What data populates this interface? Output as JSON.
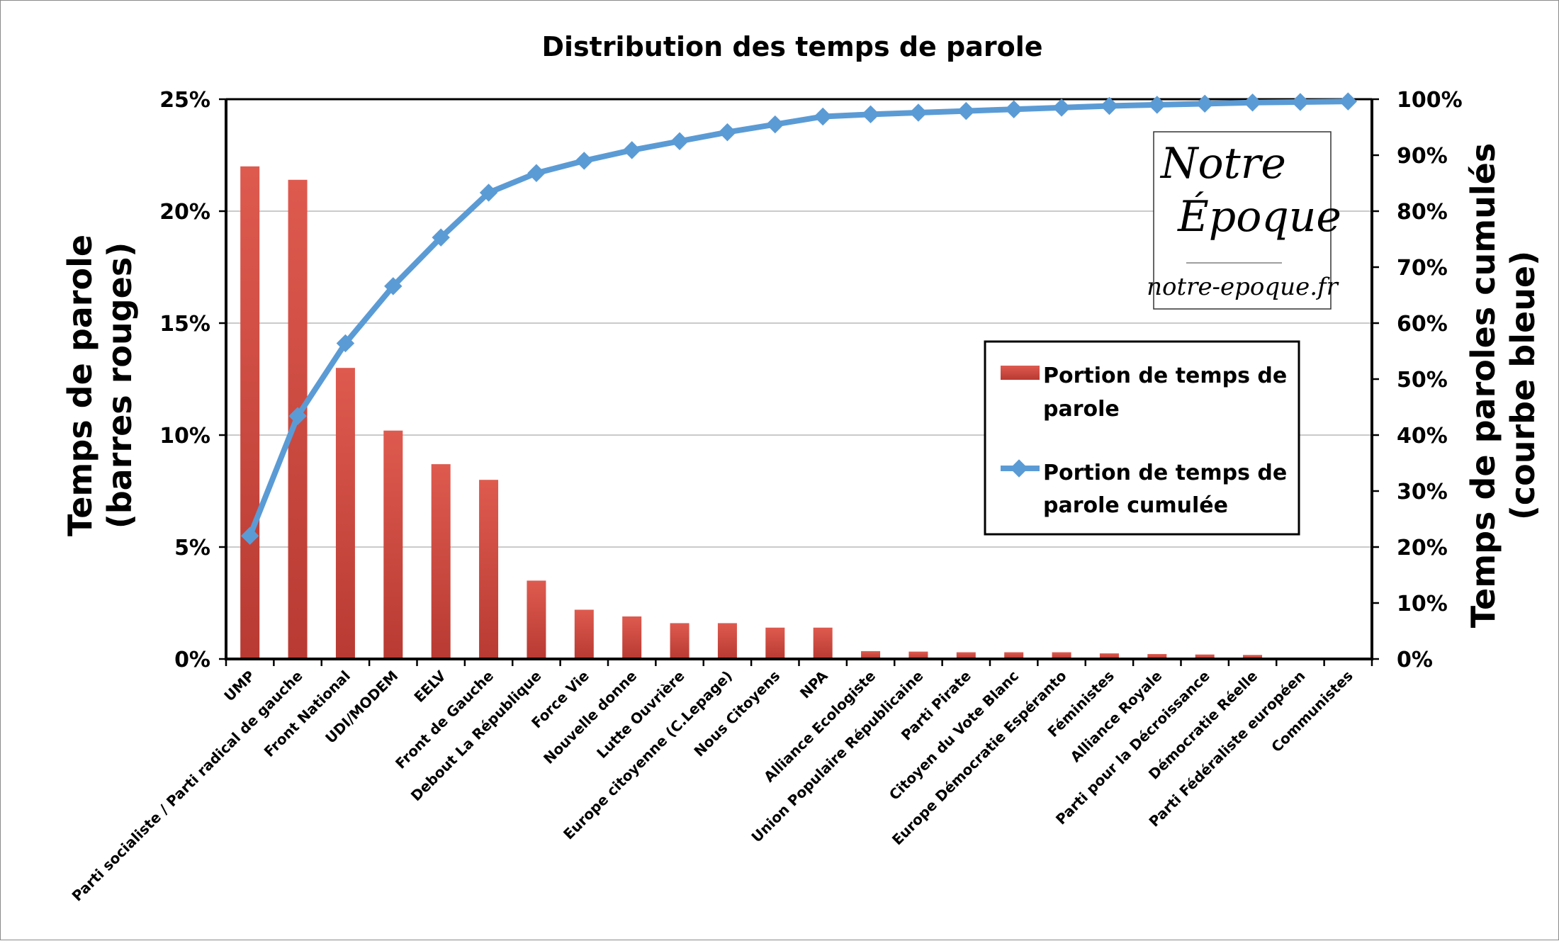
{
  "chart_data": {
    "type": "bar+line",
    "title": "Distribution des temps de parole",
    "y_left_label": [
      "Temps de parole",
      "(barres rouges)"
    ],
    "y_right_label": [
      "Temps de paroles cumulés",
      "(courbe bleue)"
    ],
    "y_left_range": [
      0,
      25
    ],
    "y_left_ticks": [
      "0%",
      "5%",
      "10%",
      "15%",
      "20%",
      "25%"
    ],
    "y_right_range": [
      0,
      100
    ],
    "y_right_ticks": [
      "0%",
      "10%",
      "20%",
      "30%",
      "40%",
      "50%",
      "60%",
      "70%",
      "80%",
      "90%",
      "100%"
    ],
    "grid": true,
    "legend_position": "right",
    "categories": [
      "UMP",
      "Parti socialiste / Parti radical de gauche",
      "Front National",
      "UDI/MODEM",
      "EELV",
      "Front de Gauche",
      "Debout La République",
      "Force Vie",
      "Nouvelle donne",
      "Lutte Ouvrière",
      "Europe citoyenne (C.Lepage)",
      "Nous Citoyens",
      "NPA",
      "Alliance Ecologiste",
      "Union Populaire Républicaine",
      "Parti Pirate",
      "Citoyen du Vote Blanc",
      "Europe Démocratie Espéranto",
      "Féministes",
      "Alliance Royale",
      "Parti pour la Décroissance",
      "Démocratie Réelle",
      "Parti Fédéraliste européen",
      "Communistes"
    ],
    "series": [
      {
        "name": "Portion de temps de parole",
        "axis": "left",
        "kind": "bar",
        "color": "#d9534a",
        "values": [
          22.0,
          21.4,
          13.0,
          10.2,
          8.7,
          8.0,
          3.5,
          2.2,
          1.9,
          1.6,
          1.6,
          1.4,
          1.4,
          0.35,
          0.33,
          0.3,
          0.3,
          0.3,
          0.25,
          0.22,
          0.2,
          0.18,
          0.05,
          0.03
        ]
      },
      {
        "name": "Portion de temps de parole cumulée",
        "axis": "right",
        "kind": "line",
        "color": "#5b9bd5",
        "values": [
          22.0,
          43.4,
          56.4,
          66.6,
          75.3,
          83.3,
          86.8,
          89.0,
          90.9,
          92.5,
          94.1,
          95.5,
          96.9,
          97.3,
          97.6,
          97.9,
          98.2,
          98.5,
          98.8,
          99.0,
          99.2,
          99.4,
          99.5,
          99.6
        ]
      }
    ]
  },
  "logo": {
    "line1": "Notre",
    "line2": "Époque",
    "url": "notre-epoque.fr"
  },
  "colors": {
    "bar": "#d9534a",
    "bar_dark": "#b3352f",
    "line": "#5b9bd5",
    "grid": "#b8b8b8"
  }
}
